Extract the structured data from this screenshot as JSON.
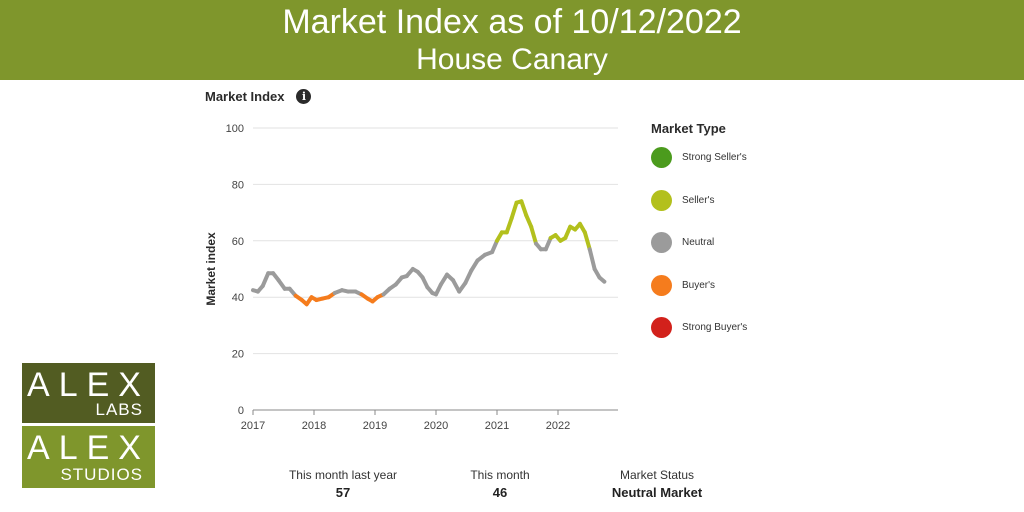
{
  "header": {
    "title": "Market Index as of 10/12/2022",
    "subtitle": "House Canary",
    "background": "#7f962c"
  },
  "chart_header": {
    "title": "Market Index",
    "info_icon": "info-icon"
  },
  "chart_data": {
    "type": "line",
    "title": "Market Index",
    "xlabel": "",
    "ylabel": "Market index",
    "xlim": [
      2017.0,
      2023.0
    ],
    "ylim": [
      0,
      100
    ],
    "xticks": [
      2017,
      2018,
      2019,
      2020,
      2021,
      2022
    ],
    "xtick_labels": [
      "2017",
      "2018",
      "2019",
      "2020",
      "2021",
      "2022"
    ],
    "yticks": [
      0,
      20,
      40,
      60,
      80,
      100
    ],
    "ytick_labels": [
      "0",
      "20",
      "40",
      "60",
      "80",
      "100"
    ],
    "grid": "horizontal",
    "legend_position": "right",
    "line_colors": {
      "Strong Seller's": "#4b9b1d",
      "Seller's": "#b3c01d",
      "Neutral": "#9b9b9b",
      "Buyer's": "#f57c1d",
      "Strong Buyer's": "#d2211b"
    },
    "series": [
      {
        "points": [
          [
            2017.0,
            42.5
          ],
          [
            2017.08,
            42
          ],
          [
            2017.16,
            44
          ],
          [
            2017.25,
            48.5
          ],
          [
            2017.33,
            48.5
          ],
          [
            2017.42,
            46
          ],
          [
            2017.52,
            43
          ],
          [
            2017.6,
            43
          ],
          [
            2017.7,
            40.5
          ],
          [
            2017.8,
            39
          ],
          [
            2017.88,
            37.5
          ],
          [
            2017.96,
            40
          ],
          [
            2018.04,
            39
          ],
          [
            2018.14,
            39.5
          ],
          [
            2018.24,
            40
          ],
          [
            2018.34,
            41.5
          ],
          [
            2018.46,
            42.5
          ],
          [
            2018.56,
            42
          ],
          [
            2018.68,
            42
          ],
          [
            2018.78,
            41
          ],
          [
            2018.88,
            39.5
          ],
          [
            2018.96,
            38.5
          ],
          [
            2019.04,
            40
          ],
          [
            2019.14,
            41
          ],
          [
            2019.24,
            43
          ],
          [
            2019.34,
            44.5
          ],
          [
            2019.44,
            47
          ],
          [
            2019.52,
            47.5
          ],
          [
            2019.62,
            50
          ],
          [
            2019.7,
            49
          ],
          [
            2019.78,
            47
          ],
          [
            2019.86,
            43.5
          ],
          [
            2019.94,
            41.5
          ],
          [
            2020.0,
            41
          ],
          [
            2020.08,
            44.5
          ],
          [
            2020.18,
            48
          ],
          [
            2020.28,
            46
          ],
          [
            2020.38,
            42
          ],
          [
            2020.48,
            45
          ],
          [
            2020.58,
            49.5
          ],
          [
            2020.68,
            53
          ],
          [
            2020.8,
            55
          ],
          [
            2020.92,
            56
          ],
          [
            2021.0,
            60
          ],
          [
            2021.08,
            63
          ],
          [
            2021.16,
            63
          ],
          [
            2021.24,
            68
          ],
          [
            2021.32,
            73.5
          ],
          [
            2021.4,
            74
          ],
          [
            2021.48,
            69
          ],
          [
            2021.56,
            65
          ],
          [
            2021.64,
            59
          ],
          [
            2021.72,
            57
          ],
          [
            2021.8,
            57
          ],
          [
            2021.88,
            61
          ],
          [
            2021.96,
            62
          ],
          [
            2022.04,
            60
          ],
          [
            2022.12,
            61
          ],
          [
            2022.2,
            65
          ],
          [
            2022.28,
            64
          ],
          [
            2022.36,
            66
          ],
          [
            2022.44,
            63
          ],
          [
            2022.52,
            57
          ],
          [
            2022.6,
            50
          ],
          [
            2022.68,
            47
          ],
          [
            2022.76,
            45.5
          ]
        ]
      }
    ]
  },
  "legend": {
    "title": "Market Type",
    "items": [
      {
        "label": "Strong Seller's",
        "color": "#4b9b1d"
      },
      {
        "label": "Seller's",
        "color": "#b3c01d"
      },
      {
        "label": "Neutral",
        "color": "#9b9b9b"
      },
      {
        "label": "Buyer's",
        "color": "#f57c1d"
      },
      {
        "label": "Strong Buyer's",
        "color": "#d2211b"
      }
    ]
  },
  "stats": {
    "last_year": {
      "label": "This month last year",
      "value": "57"
    },
    "this_month": {
      "label": "This month",
      "value": "46"
    },
    "status": {
      "label": "Market Status",
      "value": "Neutral Market"
    }
  },
  "logo": {
    "labs_word": "ALEX",
    "labs_sub": "LABS",
    "studios_word": "ALEX",
    "studios_sub": "STUDIOS"
  }
}
